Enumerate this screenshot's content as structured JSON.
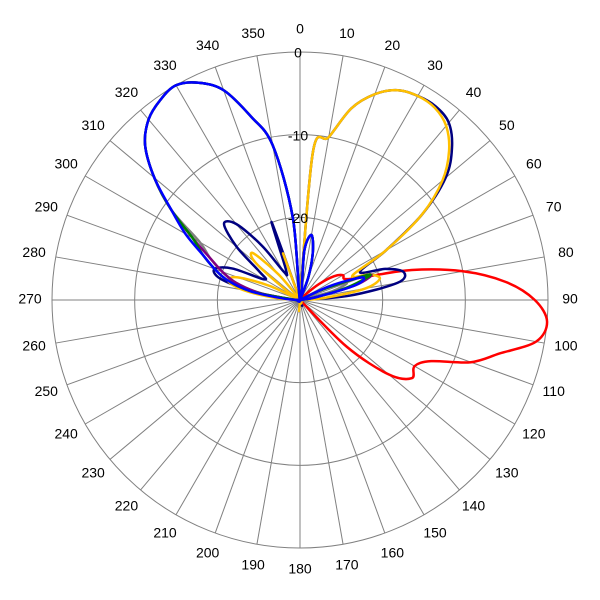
{
  "chart_data": {
    "type": "polar-line",
    "title": "",
    "angle_direction": "clockwise",
    "zero_direction": "top",
    "angle_ticks": [
      0,
      10,
      20,
      30,
      40,
      50,
      60,
      70,
      80,
      90,
      100,
      110,
      120,
      130,
      140,
      150,
      160,
      170,
      180,
      190,
      200,
      210,
      220,
      230,
      240,
      250,
      260,
      270,
      280,
      290,
      300,
      310,
      320,
      330,
      340,
      350
    ],
    "angle_tick_labels": [
      "0",
      "10",
      "20",
      "30",
      "40",
      "50",
      "60",
      "70",
      "80",
      "90",
      "100",
      "110",
      "120",
      "130",
      "140",
      "150",
      "160",
      "170",
      "180",
      "190",
      "200",
      "210",
      "220",
      "230",
      "240",
      "250",
      "260",
      "270",
      "280",
      "290",
      "300",
      "310",
      "320",
      "330",
      "340",
      "350"
    ],
    "radial_range": [
      -30,
      0
    ],
    "radial_ticks": [
      0,
      -10,
      -20,
      -30
    ],
    "radial_tick_labels": [
      "0",
      "-10",
      "-20"
    ],
    "grid": true,
    "legend": "none",
    "series": [
      {
        "color": "#ff0000",
        "theta": [
          0,
          10,
          20,
          30,
          40,
          45,
          50,
          55,
          60,
          65,
          70,
          75,
          80,
          85,
          90,
          95,
          100,
          105,
          110,
          115,
          120,
          125,
          130,
          135,
          140,
          150,
          160,
          170,
          180
        ],
        "r": [
          -30,
          -30,
          -30,
          -30,
          -30,
          -29,
          -27,
          -25,
          -24,
          -24,
          -22,
          -16,
          -10,
          -5,
          -1.6,
          0,
          -1,
          -5,
          -8,
          -12.5,
          -14,
          -13.5,
          -16,
          -22,
          -30,
          -30,
          -30,
          -30,
          -30
        ]
      },
      {
        "color": "#000080",
        "theta": [
          0,
          5,
          10,
          15,
          20,
          25,
          30,
          35,
          40,
          45,
          50,
          55,
          60,
          65,
          70,
          75,
          80,
          85,
          90,
          180,
          270,
          275,
          280,
          285,
          290,
          295,
          300,
          305,
          310,
          315,
          320,
          325,
          330,
          335,
          340,
          345,
          350,
          355
        ],
        "r": [
          -30,
          -12,
          -10,
          -6,
          -3.5,
          -2,
          -1.5,
          -1.4,
          -2,
          -4,
          -7,
          -12,
          -18,
          -22,
          -19,
          -17,
          -18,
          -24,
          -30,
          -30,
          -30,
          -28,
          -24,
          -20,
          -19,
          -21,
          -25,
          -24,
          -20,
          -17,
          -18,
          -22,
          -26,
          -26,
          -20,
          -30,
          -30,
          -30
        ]
      },
      {
        "color": "#ffc000",
        "theta": [
          0,
          5,
          10,
          15,
          20,
          25,
          30,
          35,
          40,
          45,
          50,
          55,
          60,
          65,
          70,
          75,
          80,
          85,
          90,
          180,
          270,
          275,
          280,
          285,
          290,
          295,
          300,
          305,
          310,
          315,
          320,
          325,
          330,
          335,
          340,
          345,
          350,
          355
        ],
        "r": [
          -30,
          -12,
          -10,
          -6,
          -3.5,
          -2,
          -1.5,
          -1.6,
          -2.5,
          -4.5,
          -7.5,
          -12,
          -18,
          -23,
          -21,
          -20,
          -22,
          -27,
          -30,
          -30,
          -30,
          -27,
          -23,
          -21,
          -22,
          -26,
          -30,
          -28,
          -23,
          -22,
          -26,
          -30,
          -30,
          -30,
          -24,
          -30,
          -30,
          -30
        ]
      },
      {
        "color": "#808080",
        "theta": [
          0,
          5,
          10,
          15,
          20,
          25,
          30,
          35,
          40,
          45,
          50,
          55,
          60,
          65,
          70,
          75,
          80,
          85,
          90,
          180,
          270,
          275,
          280,
          285,
          290,
          295,
          300,
          305,
          310,
          315,
          320,
          325,
          330,
          335,
          340,
          345,
          350,
          355
        ],
        "r": [
          -30,
          -24,
          -22,
          -24,
          -27,
          -30,
          -30,
          -30,
          -30,
          -30,
          -30,
          -30,
          -30,
          -27,
          -24,
          -26,
          -30,
          -30,
          -30,
          -30,
          -30,
          -29,
          -25,
          -22,
          -20,
          -18,
          -16,
          -11,
          -7,
          -3.5,
          -1.5,
          -0.5,
          0,
          -1,
          -3,
          -7,
          -11,
          -20
        ]
      },
      {
        "color": "#800080",
        "theta": [
          0,
          5,
          10,
          15,
          20,
          25,
          30,
          35,
          40,
          45,
          50,
          55,
          60,
          65,
          70,
          75,
          80,
          85,
          90,
          180,
          270,
          275,
          280,
          285,
          290,
          295,
          300,
          305,
          310,
          315,
          320,
          325,
          330,
          335,
          340,
          345,
          350,
          355
        ],
        "r": [
          -30,
          -24,
          -22,
          -24,
          -27,
          -30,
          -30,
          -30,
          -30,
          -30,
          -30,
          -30,
          -30,
          -27,
          -21,
          -23,
          -28,
          -30,
          -30,
          -30,
          -30,
          -29,
          -25,
          -22,
          -20,
          -18,
          -15,
          -11,
          -7,
          -3.5,
          -1.5,
          -0.5,
          0,
          -1,
          -3,
          -7,
          -11,
          -20
        ]
      },
      {
        "color": "#008000",
        "theta": [
          0,
          5,
          10,
          15,
          20,
          25,
          30,
          35,
          40,
          45,
          50,
          55,
          60,
          65,
          70,
          75,
          80,
          85,
          90,
          180,
          270,
          275,
          280,
          285,
          290,
          295,
          300,
          305,
          310,
          315,
          320,
          325,
          330,
          335,
          340,
          345,
          350,
          355
        ],
        "r": [
          -30,
          -24,
          -22,
          -24,
          -27,
          -30,
          -30,
          -30,
          -30,
          -30,
          -30,
          -30,
          -30,
          -27,
          -21,
          -24,
          -28,
          -30,
          -30,
          -30,
          -30,
          -29,
          -24,
          -21,
          -19,
          -17,
          -15,
          -11,
          -7,
          -3.5,
          -1.5,
          -0.5,
          0,
          -1,
          -3,
          -7,
          -11,
          -20
        ]
      },
      {
        "color": "#0000ff",
        "theta": [
          0,
          5,
          10,
          15,
          20,
          25,
          30,
          35,
          40,
          45,
          50,
          55,
          60,
          65,
          70,
          75,
          80,
          85,
          90,
          180,
          270,
          275,
          280,
          285,
          290,
          295,
          300,
          305,
          310,
          315,
          320,
          325,
          330,
          335,
          340,
          345,
          350,
          355
        ],
        "r": [
          -30,
          -24,
          -22,
          -24,
          -27,
          -30,
          -30,
          -30,
          -30,
          -30,
          -30,
          -30,
          -30,
          -26,
          -22,
          -23,
          -28,
          -30,
          -30,
          -30,
          -30,
          -28,
          -24,
          -21,
          -19,
          -17,
          -14,
          -11,
          -7,
          -3.5,
          -1.5,
          -0.5,
          0,
          -1,
          -3,
          -7,
          -11,
          -20
        ]
      }
    ]
  }
}
